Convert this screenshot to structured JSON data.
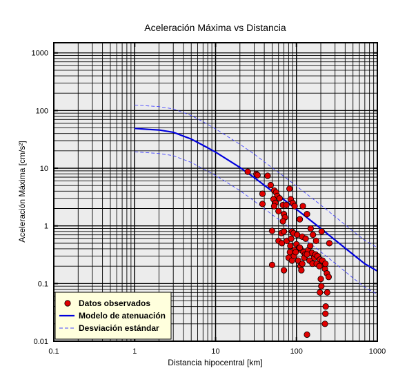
{
  "chart_data": {
    "type": "scatter",
    "title": "Aceleración Máxima vs Distancia",
    "xlabel": "Distancia hipocentral [km]",
    "ylabel": "Aceleración Máxima [cm/s²]",
    "xscale": "log",
    "yscale": "log",
    "xlim": [
      0.1,
      1000
    ],
    "ylim": [
      0.01,
      1500
    ],
    "grid": true,
    "x_ticks": [
      {
        "value": 0.1,
        "label": "0.1"
      },
      {
        "value": 1,
        "label": "1"
      },
      {
        "value": 10,
        "label": "10"
      },
      {
        "value": 100,
        "label": "100"
      },
      {
        "value": 1000,
        "label": "1000"
      }
    ],
    "y_ticks": [
      {
        "value": 0.01,
        "label": "0.01"
      },
      {
        "value": 0.1,
        "label": "0.1"
      },
      {
        "value": 1,
        "label": "1"
      },
      {
        "value": 10,
        "label": "10"
      },
      {
        "value": 100,
        "label": "100"
      },
      {
        "value": 1000,
        "label": "1000"
      }
    ],
    "legend_position": "bottom-left",
    "series": [
      {
        "name": "Datos observados",
        "kind": "scatter",
        "color": "#e00000",
        "points": [
          [
            25,
            8.7
          ],
          [
            32,
            7.9
          ],
          [
            33,
            7.6
          ],
          [
            44,
            7.4
          ],
          [
            48,
            5.1
          ],
          [
            38,
            3.6
          ],
          [
            53,
            4.1
          ],
          [
            56,
            3.8
          ],
          [
            58,
            3.3
          ],
          [
            62,
            3.0
          ],
          [
            52,
            2.9
          ],
          [
            55,
            2.5
          ],
          [
            53,
            2.2
          ],
          [
            38,
            2.4
          ],
          [
            60,
            1.8
          ],
          [
            68,
            2.3
          ],
          [
            75,
            2.3
          ],
          [
            82,
            4.4
          ],
          [
            85,
            2.9
          ],
          [
            90,
            2.5
          ],
          [
            95,
            2.2
          ],
          [
            120,
            2.2
          ],
          [
            135,
            1.6
          ],
          [
            110,
            1.3
          ],
          [
            70,
            1.6
          ],
          [
            72,
            1.4
          ],
          [
            68,
            1.2
          ],
          [
            50,
            0.82
          ],
          [
            65,
            0.75
          ],
          [
            70,
            0.8
          ],
          [
            88,
            0.8
          ],
          [
            92,
            0.75
          ],
          [
            102,
            0.7
          ],
          [
            118,
            0.65
          ],
          [
            130,
            0.6
          ],
          [
            150,
            0.9
          ],
          [
            160,
            0.7
          ],
          [
            175,
            0.55
          ],
          [
            205,
            0.8
          ],
          [
            255,
            0.5
          ],
          [
            60,
            0.55
          ],
          [
            66,
            0.5
          ],
          [
            76,
            0.55
          ],
          [
            84,
            0.45
          ],
          [
            86,
            0.6
          ],
          [
            95,
            0.38
          ],
          [
            100,
            0.48
          ],
          [
            108,
            0.42
          ],
          [
            115,
            0.38
          ],
          [
            122,
            0.35
          ],
          [
            128,
            0.32
          ],
          [
            140,
            0.38
          ],
          [
            148,
            0.45
          ],
          [
            155,
            0.34
          ],
          [
            165,
            0.28
          ],
          [
            172,
            0.32
          ],
          [
            182,
            0.3
          ],
          [
            195,
            0.26
          ],
          [
            215,
            0.21
          ],
          [
            225,
            0.18
          ],
          [
            80,
            0.28
          ],
          [
            83,
            0.35
          ],
          [
            88,
            0.25
          ],
          [
            93,
            0.3
          ],
          [
            98,
            0.35
          ],
          [
            105,
            0.25
          ],
          [
            112,
            0.2
          ],
          [
            118,
            0.22
          ],
          [
            125,
            0.28
          ],
          [
            135,
            0.32
          ],
          [
            145,
            0.25
          ],
          [
            158,
            0.22
          ],
          [
            178,
            0.22
          ],
          [
            192,
            0.2
          ],
          [
            200,
            0.12
          ],
          [
            210,
            0.25
          ],
          [
            228,
            0.22
          ],
          [
            238,
            0.15
          ],
          [
            250,
            0.13
          ],
          [
            203,
            0.09
          ],
          [
            195,
            0.07
          ],
          [
            240,
            0.07
          ],
          [
            230,
            0.04
          ],
          [
            228,
            0.03
          ],
          [
            225,
            0.02
          ],
          [
            135,
            0.013
          ],
          [
            50,
            0.21
          ],
          [
            70,
            0.17
          ],
          [
            110,
            0.42
          ],
          [
            115,
            0.17
          ]
        ]
      },
      {
        "name": "Modelo de atenuación",
        "kind": "line",
        "color": "#0000dd",
        "x": [
          1,
          1.5,
          2,
          3,
          5,
          7,
          10,
          20,
          30,
          50,
          70,
          100,
          200,
          300,
          500,
          700,
          1000
        ],
        "y": [
          49,
          47,
          46,
          42,
          32,
          25,
          19,
          10.3,
          6.9,
          4.0,
          2.84,
          1.94,
          0.9,
          0.57,
          0.32,
          0.22,
          0.165
        ]
      },
      {
        "name": "Desviación estándar",
        "kind": "line",
        "dashed": true,
        "color": "#4444ff",
        "x": [
          1,
          1.5,
          2,
          3,
          5,
          7,
          10,
          20,
          30,
          50,
          70,
          100,
          200,
          300,
          500,
          700,
          1000
        ],
        "y": [
          125,
          120,
          117,
          107,
          82,
          64,
          48,
          26,
          17.6,
          10.2,
          7.2,
          4.9,
          2.3,
          1.45,
          0.81,
          0.56,
          0.42
        ]
      },
      {
        "name": "Desviación estándar",
        "kind": "line",
        "dashed": true,
        "color": "#4444ff",
        "legend": false,
        "x": [
          1,
          1.5,
          2,
          3,
          5,
          7,
          10,
          20,
          30,
          50,
          70,
          100,
          200,
          300,
          500,
          700,
          1000
        ],
        "y": [
          19.3,
          18.5,
          18.0,
          16.5,
          12.6,
          9.8,
          7.5,
          4.1,
          2.7,
          1.57,
          1.11,
          0.76,
          0.355,
          0.225,
          0.125,
          0.086,
          0.065
        ]
      }
    ],
    "legend": [
      {
        "label": "Datos observados",
        "symbol": "circle",
        "color": "#e00000"
      },
      {
        "label": "Modelo de atenuación",
        "symbol": "line",
        "color": "#0000dd"
      },
      {
        "label": "Desviación estándar",
        "symbol": "dashed-line",
        "color": "#4444ff"
      }
    ],
    "colors": {
      "plot_background": "#ececec",
      "legend_background": "#ffffdd",
      "grid": "#000000"
    }
  }
}
